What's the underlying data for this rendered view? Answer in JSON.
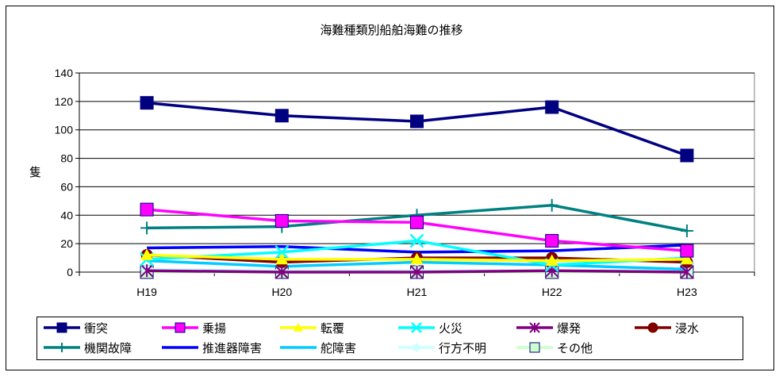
{
  "chart_data": {
    "type": "line",
    "title": "海難種類別船舶海難の推移",
    "ylabel": "隻",
    "xlabel": "",
    "categories": [
      "H19",
      "H20",
      "H21",
      "H22",
      "H23"
    ],
    "ylim": [
      0,
      140
    ],
    "yticks": [
      0,
      20,
      40,
      60,
      80,
      100,
      120,
      140
    ],
    "grid": true,
    "legend_position": "bottom",
    "series": [
      {
        "name": "衝突",
        "values": [
          119,
          110,
          106,
          116,
          82
        ],
        "color": "#000080",
        "marker": "square"
      },
      {
        "name": "乗揚",
        "values": [
          44,
          36,
          35,
          22,
          15
        ],
        "color": "#ff00ff",
        "marker": "square"
      },
      {
        "name": "転覆",
        "values": [
          12,
          9,
          9,
          8,
          9
        ],
        "color": "#ffff00",
        "marker": "triangle"
      },
      {
        "name": "火災",
        "values": [
          9,
          14,
          22,
          5,
          10
        ],
        "color": "#00ffff",
        "marker": "x"
      },
      {
        "name": "爆発",
        "values": [
          1,
          0,
          0,
          1,
          0
        ],
        "color": "#800080",
        "marker": "star"
      },
      {
        "name": "浸水",
        "values": [
          12,
          7,
          10,
          10,
          7
        ],
        "color": "#800000",
        "marker": "circle"
      },
      {
        "name": "機関故障",
        "values": [
          31,
          32,
          40,
          47,
          29
        ],
        "color": "#008080",
        "marker": "plus"
      },
      {
        "name": "推進器障害",
        "values": [
          17,
          18,
          14,
          15,
          19
        ],
        "color": "#0000ff",
        "marker": "none"
      },
      {
        "name": "舵障害",
        "values": [
          8,
          4,
          7,
          5,
          2
        ],
        "color": "#00ccff",
        "marker": "none"
      },
      {
        "name": "行方不明",
        "values": [
          2,
          1,
          1,
          1,
          1
        ],
        "color": "#ccffff",
        "marker": "diamond"
      },
      {
        "name": "その他",
        "values": [
          0,
          0,
          0,
          0,
          0
        ],
        "color": "#ccffcc",
        "marker": "square"
      }
    ]
  }
}
